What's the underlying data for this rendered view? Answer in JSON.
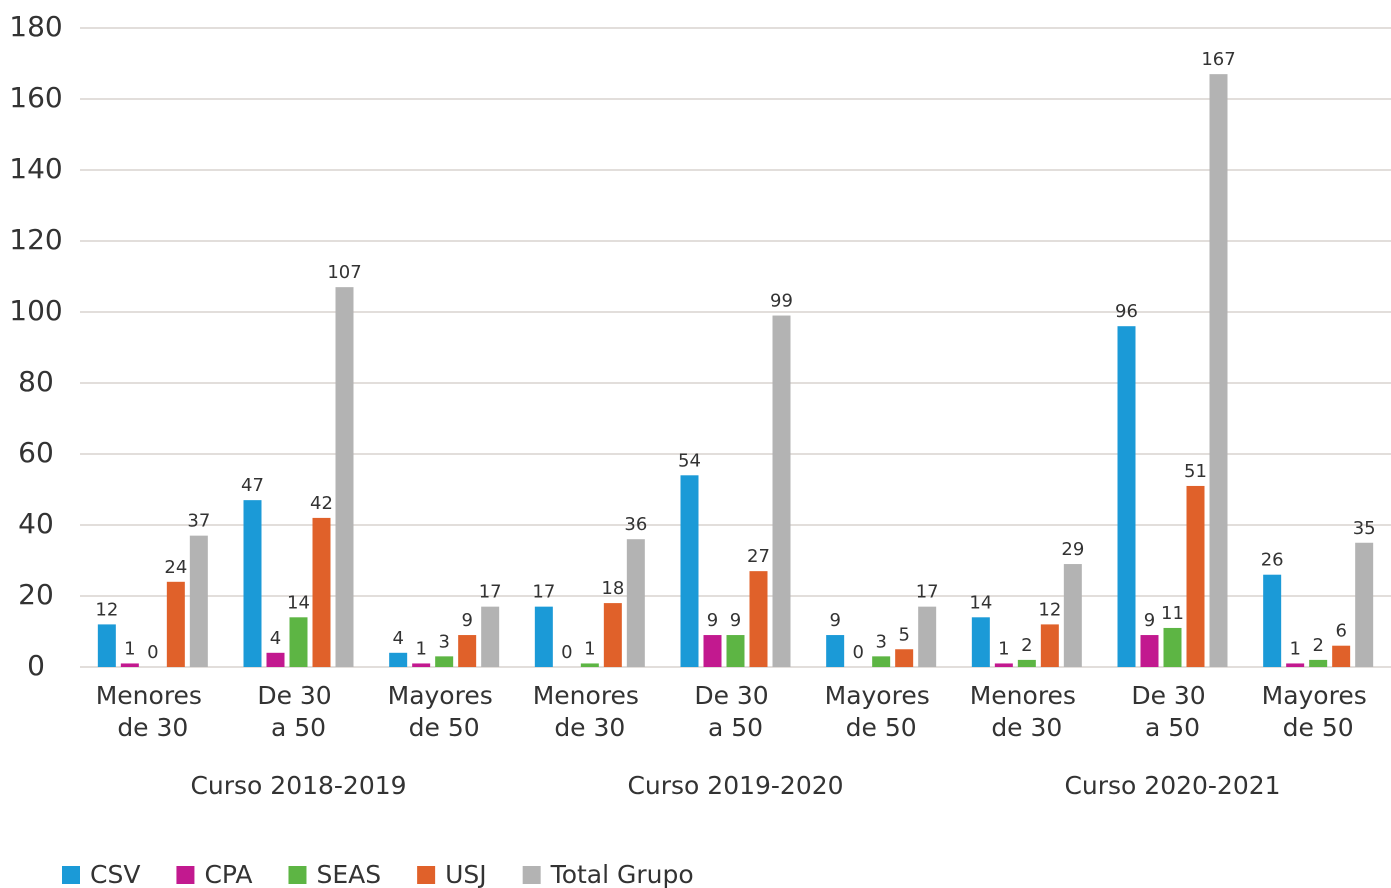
{
  "chart_data": {
    "type": "bar",
    "categories": [
      "Menores de 30",
      "De 30 a 50",
      "Mayores de 50",
      "Menores de 30",
      "De 30 a 50",
      "Mayores de 50",
      "Menores de 30",
      "De 30 a 50",
      "Mayores de 50"
    ],
    "group_labels": [
      "Curso 2018-2019",
      "Curso 2019-2020",
      "Curso 2020-2021"
    ],
    "series": [
      {
        "name": "CSV",
        "color": "#1b9ad7",
        "values": [
          12,
          47,
          4,
          17,
          54,
          9,
          14,
          96,
          26
        ]
      },
      {
        "name": "CPA",
        "color": "#c2198f",
        "values": [
          1,
          4,
          1,
          0,
          9,
          0,
          1,
          9,
          1
        ]
      },
      {
        "name": "SEAS",
        "color": "#5db544",
        "values": [
          0,
          14,
          3,
          1,
          9,
          3,
          2,
          11,
          2
        ]
      },
      {
        "name": "USJ",
        "color": "#e0612a",
        "values": [
          24,
          42,
          9,
          18,
          27,
          5,
          12,
          51,
          6
        ]
      },
      {
        "name": "Total Grupo",
        "color": "#b3b3b3",
        "values": [
          37,
          107,
          17,
          36,
          99,
          17,
          29,
          167,
          35
        ]
      }
    ],
    "ylim": [
      0,
      180
    ],
    "yticks": [
      0,
      20,
      40,
      60,
      80,
      100,
      120,
      140,
      160,
      180
    ],
    "grid": true,
    "legend": "bottom"
  }
}
